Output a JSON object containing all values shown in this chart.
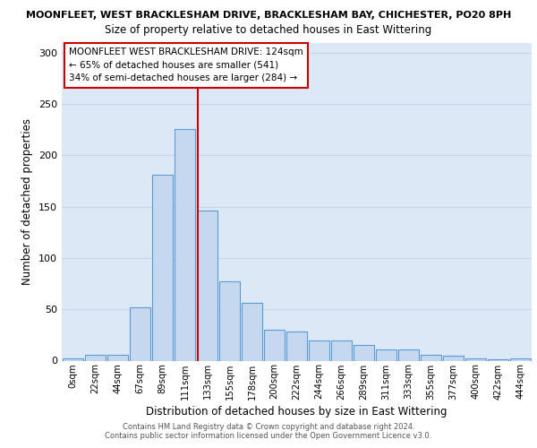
{
  "title_line1": "MOONFLEET, WEST BRACKLESHAM DRIVE, BRACKLESHAM BAY, CHICHESTER, PO20 8PH",
  "title_line2": "Size of property relative to detached houses in East Wittering",
  "xlabel": "Distribution of detached houses by size in East Wittering",
  "ylabel": "Number of detached properties",
  "bar_labels": [
    "0sqm",
    "22sqm",
    "44sqm",
    "67sqm",
    "89sqm",
    "111sqm",
    "133sqm",
    "155sqm",
    "178sqm",
    "200sqm",
    "222sqm",
    "244sqm",
    "266sqm",
    "289sqm",
    "311sqm",
    "333sqm",
    "355sqm",
    "377sqm",
    "400sqm",
    "422sqm",
    "444sqm"
  ],
  "bar_values": [
    2,
    6,
    6,
    52,
    181,
    226,
    146,
    77,
    56,
    30,
    28,
    20,
    20,
    15,
    11,
    11,
    6,
    5,
    2,
    1,
    2
  ],
  "bar_color": "#c5d8ef",
  "bar_edge_color": "#5b9bd5",
  "annotation_text_line1": "MOONFLEET WEST BRACKLESHAM DRIVE: 124sqm",
  "annotation_text_line2": "← 65% of detached houses are smaller (541)",
  "annotation_text_line3": "34% of semi-detached houses are larger (284) →",
  "vline_color": "#cc0000",
  "annotation_box_color": "#ffffff",
  "annotation_box_edge": "#cc0000",
  "grid_color": "#c8d4e8",
  "background_color": "#dce8f5",
  "footer_line1": "Contains HM Land Registry data © Crown copyright and database right 2024.",
  "footer_line2": "Contains public sector information licensed under the Open Government Licence v3.0.",
  "yticks": [
    0,
    50,
    100,
    150,
    200,
    250,
    300
  ],
  "ylim": [
    0,
    310
  ]
}
